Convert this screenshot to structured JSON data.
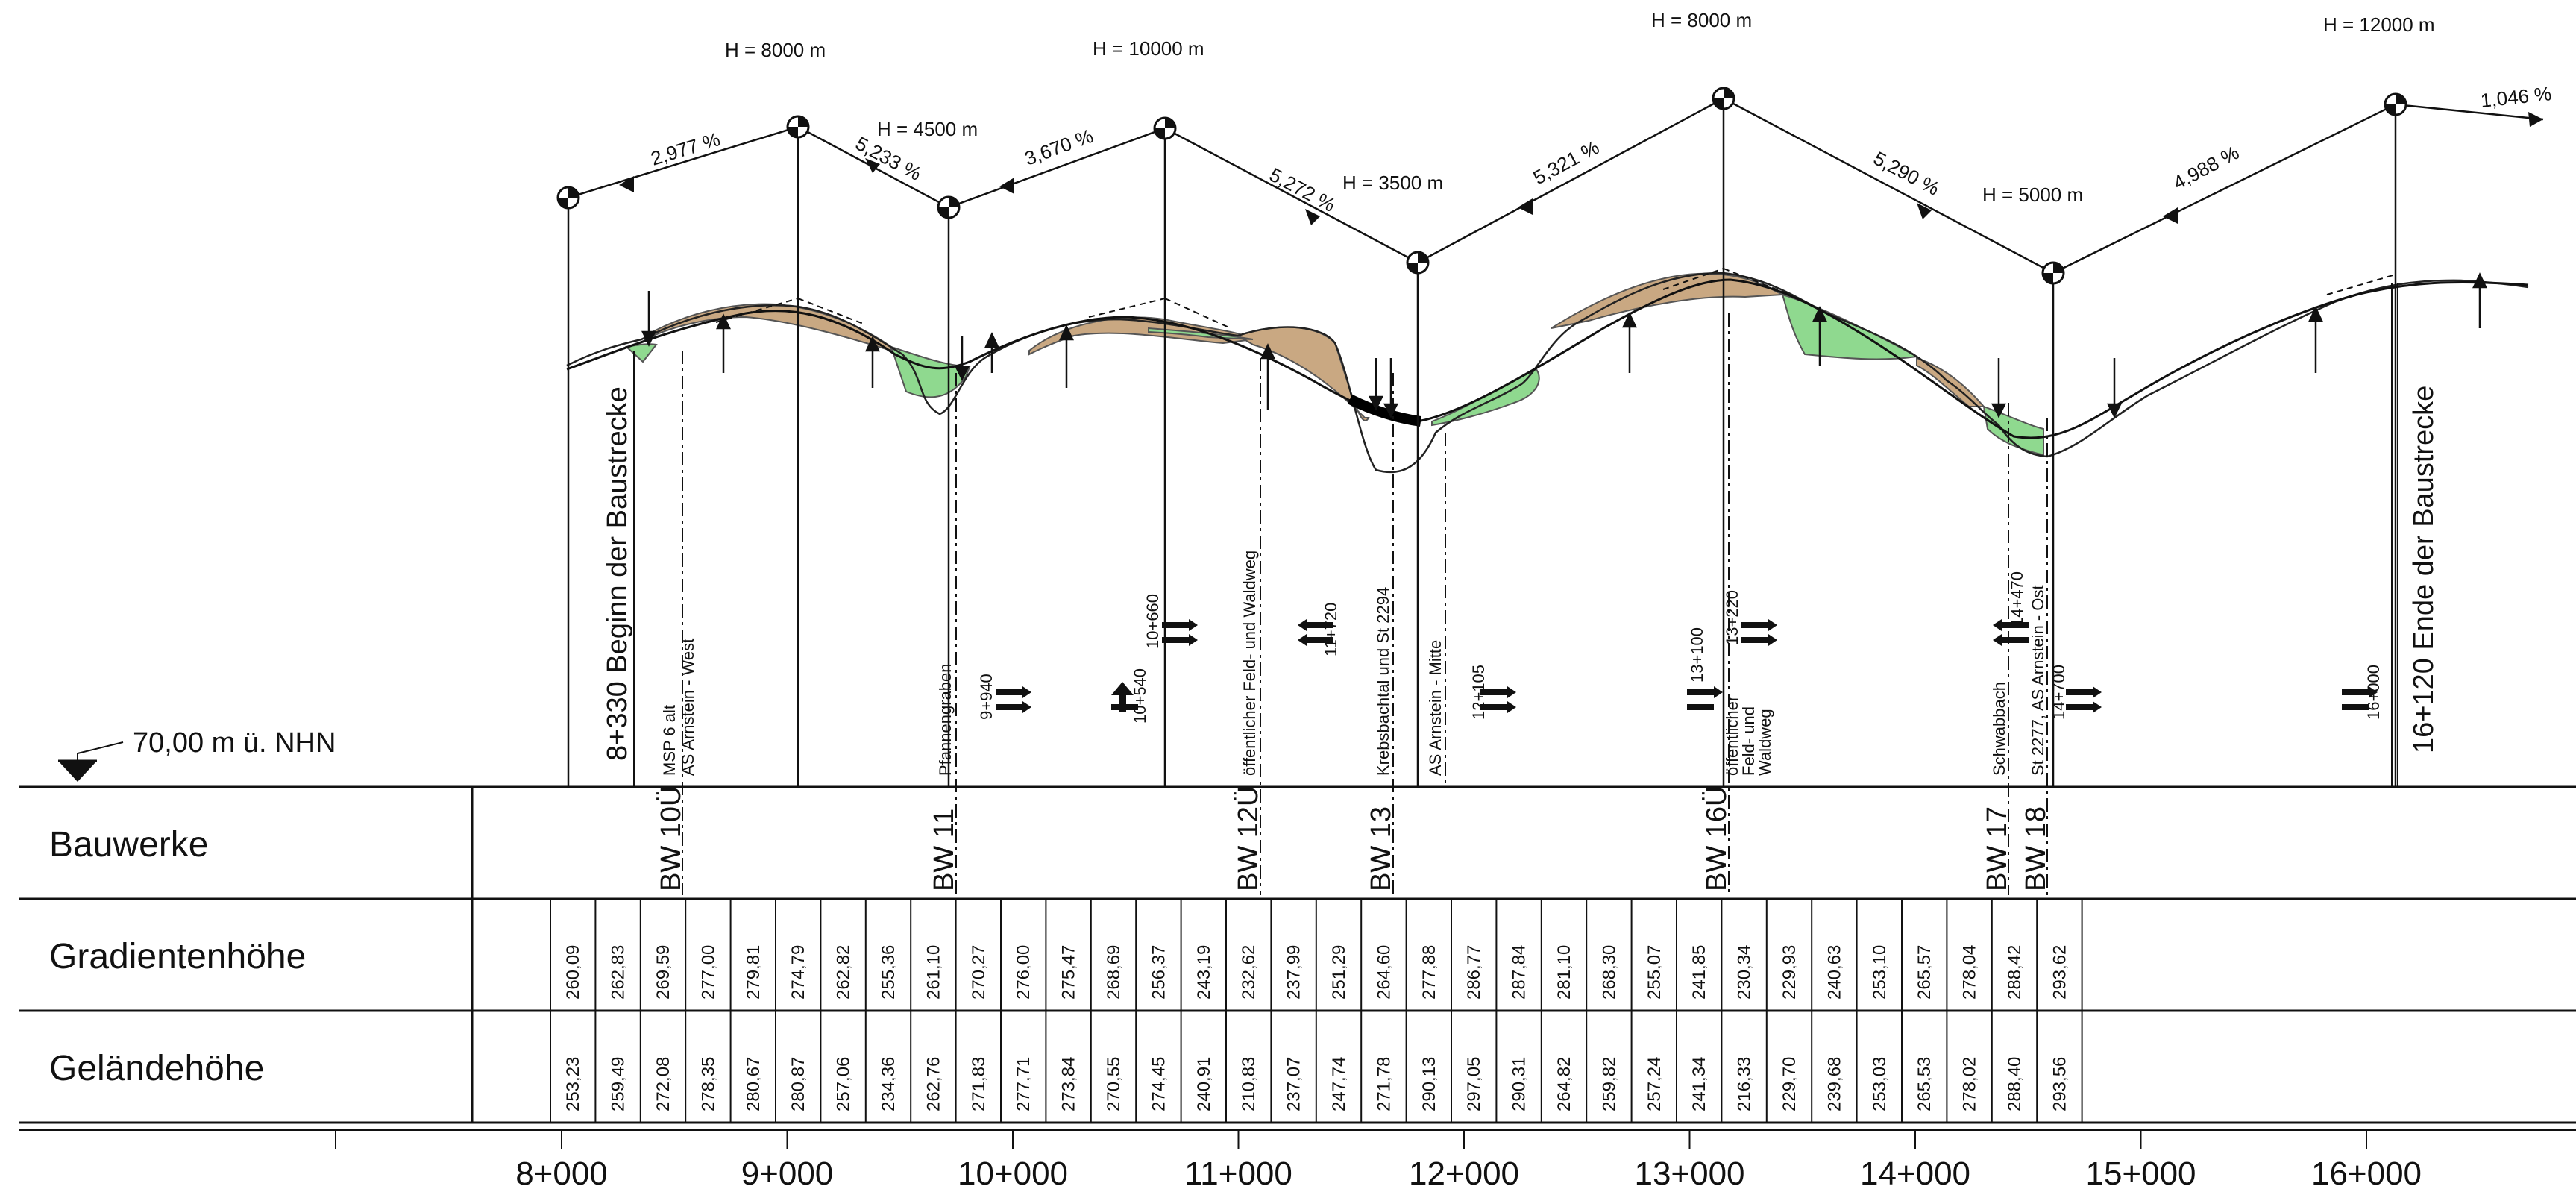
{
  "datum": "70,00 m ü. NHN",
  "rows": {
    "bauwerke": "Bauwerke",
    "gradient": "Gradientenhöhe",
    "gelaende": "Geländehöhe"
  },
  "gradient_values": [
    "260,09",
    "262,83",
    "269,59",
    "277,00",
    "279,81",
    "274,79",
    "262,82",
    "255,36",
    "261,10",
    "270,27",
    "276,00",
    "275,47",
    "268,69",
    "256,37",
    "243,19",
    "232,62",
    "237,99",
    "251,29",
    "264,60",
    "277,88",
    "286,77",
    "287,84",
    "281,10",
    "268,30",
    "255,07",
    "241,85",
    "230,34",
    "229,93",
    "240,63",
    "253,10",
    "265,57",
    "278,04",
    "288,42",
    "293,62"
  ],
  "gelaende_values": [
    "253,23",
    "259,49",
    "272,08",
    "278,35",
    "280,67",
    "280,87",
    "257,06",
    "234,36",
    "262,76",
    "271,83",
    "277,71",
    "273,84",
    "270,55",
    "274,45",
    "240,91",
    "210,83",
    "237,07",
    "247,74",
    "271,78",
    "290,13",
    "297,05",
    "290,31",
    "264,82",
    "259,82",
    "257,24",
    "241,34",
    "216,33",
    "229,70",
    "239,68",
    "253,03",
    "265,53",
    "278,02",
    "288,40",
    "293,56"
  ],
  "km_labels": [
    "8+000",
    "9+000",
    "10+000",
    "11+000",
    "12+000",
    "13+000",
    "14+000",
    "15+000",
    "16+000"
  ],
  "bauwerke": [
    "BW 10Ü",
    "BW 11",
    "BW 12Ü",
    "BW 13",
    "BW 16Ü",
    "BW 17",
    "BW 18"
  ],
  "radii": [
    "H = 8000 m",
    "H = 4500 m",
    "H = 10000 m",
    "H = 3500 m",
    "H = 8000 m",
    "H = 5000 m",
    "H = 12000 m"
  ],
  "slopes": [
    "2,977 %",
    "5,233 %",
    "3,670 %",
    "5,272 %",
    "5,321 %",
    "5,290 %",
    "4,988 %",
    "1,046 %"
  ],
  "start_label": "8+330 Beginn der Baustrecke",
  "end_label": "16+120 Ende der Baustrecke",
  "annotations": {
    "msp": "MSP 6 alt",
    "as_west": "AS Arnstein - West",
    "pfannengraben": "Pfannengraben",
    "st_9940": "9+940",
    "st_10540": "10+540",
    "st_10660": "10+660",
    "feldweg1": "öffentlicher Feld- und Waldweg",
    "st_11720": "11+720",
    "krebsbachtal": "Krebsbachtal und St 2294",
    "as_mitte": "AS Arnstein - Mitte",
    "st_12105": "12+105",
    "st_13100": "13+100",
    "st_13220": "13+220",
    "feldweg2a": "öffentlicher",
    "feldweg2b": "Feld- und",
    "feldweg2c": "Waldweg",
    "schwabbach": "Schwabbach",
    "st_14470": "14+470",
    "as_ost": "St 2277, AS Arnstein - Ost",
    "st_14700": "14+700",
    "st_16000": "16+000"
  },
  "colors": {
    "fill_cut": "#c9a882",
    "fill_embankment": "#8fd98f",
    "line": "#111111"
  }
}
